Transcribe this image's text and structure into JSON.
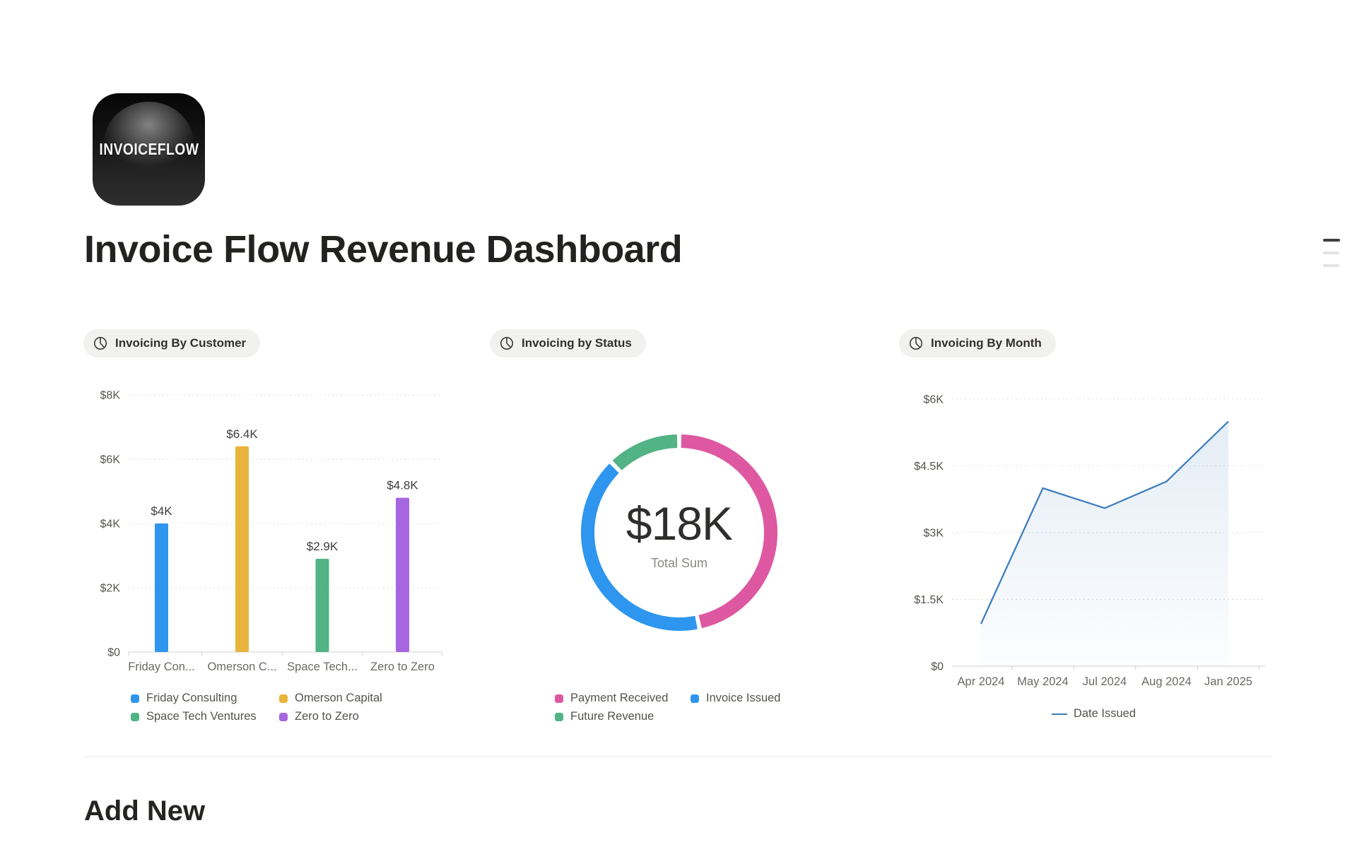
{
  "app": {
    "icon_label": "INVOICEFLOW",
    "page_title": "Invoice Flow Revenue Dashboard",
    "add_new_heading": "Add New"
  },
  "sections": [
    {
      "badge": "Invoicing By Customer"
    },
    {
      "badge": "Invoicing by Status"
    },
    {
      "badge": "Invoicing By Month"
    }
  ],
  "chart_data": [
    {
      "type": "bar",
      "title": "Invoicing By Customer",
      "categories": [
        "Friday Consulting",
        "Omerson Capital",
        "Space Tech Ventures",
        "Zero to Zero"
      ],
      "category_tick_labels": [
        "Friday Con...",
        "Omerson C...",
        "Space Tech...",
        "Zero to Zero"
      ],
      "values": [
        4.0,
        6.4,
        2.9,
        4.8
      ],
      "value_labels": [
        "$4K",
        "$6.4K",
        "$2.9K",
        "$4.8K"
      ],
      "colors": [
        "#2E96EE",
        "#E9B43C",
        "#52B385",
        "#A566DF"
      ],
      "y_ticks": [
        "$8K",
        "$6K",
        "$4K",
        "$2K",
        "$0"
      ],
      "y_tick_values": [
        8,
        6,
        4,
        2,
        0
      ],
      "ylim": [
        0,
        8
      ],
      "unit": "K USD",
      "grid": true,
      "legend_position": "bottom"
    },
    {
      "type": "pie",
      "title": "Invoicing by Status",
      "donut": true,
      "center_label": "$18K",
      "center_sublabel": "Total Sum",
      "slices": [
        {
          "label": "Payment Received",
          "value": 8.4,
          "color": "#DD58A1"
        },
        {
          "label": "Invoice Issued",
          "value": 7.4,
          "color": "#2E96EE"
        },
        {
          "label": "Future Revenue",
          "value": 2.2,
          "color": "#52B385"
        }
      ],
      "total": 18,
      "legend_position": "bottom"
    },
    {
      "type": "line",
      "title": "Invoicing By Month",
      "series_name": "Date Issued",
      "x": [
        "Apr 2024",
        "May 2024",
        "Jul 2024",
        "Aug 2024",
        "Jan 2025"
      ],
      "values": [
        0.95,
        4.0,
        3.55,
        4.15,
        5.5
      ],
      "y_ticks": [
        "$6K",
        "$4.5K",
        "$3K",
        "$1.5K",
        "$0"
      ],
      "y_tick_values": [
        6,
        4.5,
        3,
        1.5,
        0
      ],
      "ylim": [
        0,
        6
      ],
      "unit": "K USD",
      "grid": true,
      "area_fill": true,
      "line_color": "#3D7DBD",
      "legend_position": "bottom"
    }
  ]
}
